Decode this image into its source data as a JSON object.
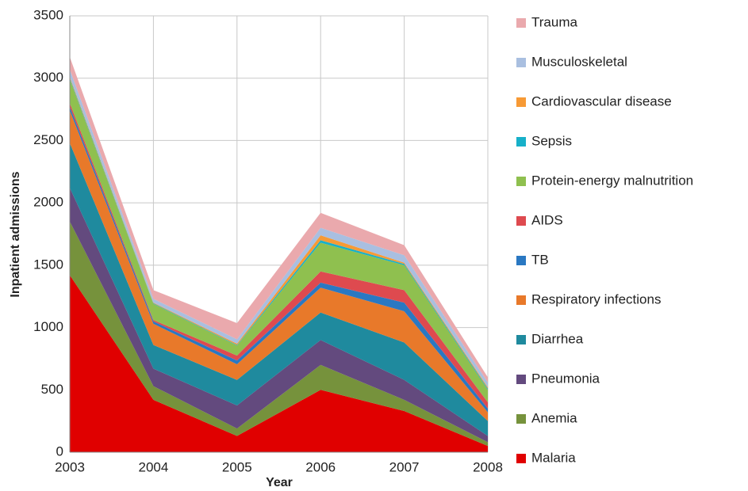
{
  "chart_data": {
    "type": "stacked_area",
    "x_label": "Year",
    "y_label": "Inpatient admissions",
    "x": [
      2003,
      2004,
      2005,
      2006,
      2007,
      2008
    ],
    "xlim": [
      2003,
      2008
    ],
    "xticks": [
      2003,
      2004,
      2005,
      2006,
      2007,
      2008
    ],
    "ylim": [
      0,
      3500
    ],
    "yticks": [
      0,
      500,
      1000,
      1500,
      2000,
      2500,
      3000,
      3500
    ],
    "grid": true,
    "legend": "right",
    "series": [
      {
        "name": "Malaria",
        "color": "#e00000",
        "values": [
          1420,
          420,
          130,
          500,
          330,
          50
        ]
      },
      {
        "name": "Anemia",
        "color": "#76923c",
        "values": [
          430,
          110,
          60,
          200,
          90,
          30
        ]
      },
      {
        "name": "Pneumonia",
        "color": "#634a7e",
        "values": [
          270,
          140,
          185,
          200,
          160,
          50
        ]
      },
      {
        "name": "Diarrhea",
        "color": "#1f8a9e",
        "values": [
          360,
          190,
          205,
          220,
          300,
          120
        ]
      },
      {
        "name": "Respiratory infections",
        "color": "#e8792a",
        "values": [
          260,
          170,
          125,
          200,
          250,
          70
        ]
      },
      {
        "name": "TB",
        "color": "#2a78c2",
        "values": [
          30,
          20,
          30,
          40,
          70,
          30
        ]
      },
      {
        "name": "AIDS",
        "color": "#de4a4f",
        "values": [
          30,
          10,
          40,
          90,
          100,
          50
        ]
      },
      {
        "name": "Protein-energy malnutrition",
        "color": "#8fc04f",
        "values": [
          190,
          130,
          80,
          230,
          200,
          100
        ]
      },
      {
        "name": "Sepsis",
        "color": "#17b0c9",
        "values": [
          10,
          5,
          5,
          20,
          10,
          10
        ]
      },
      {
        "name": "Cardiovascular disease",
        "color": "#f79a35",
        "values": [
          10,
          5,
          10,
          40,
          10,
          10
        ]
      },
      {
        "name": "Musculoskeletal",
        "color": "#a9bfe0",
        "values": [
          60,
          30,
          35,
          60,
          60,
          40
        ]
      },
      {
        "name": "Trauma",
        "color": "#eaa9ad",
        "values": [
          100,
          70,
          130,
          120,
          80,
          40
        ]
      }
    ]
  }
}
